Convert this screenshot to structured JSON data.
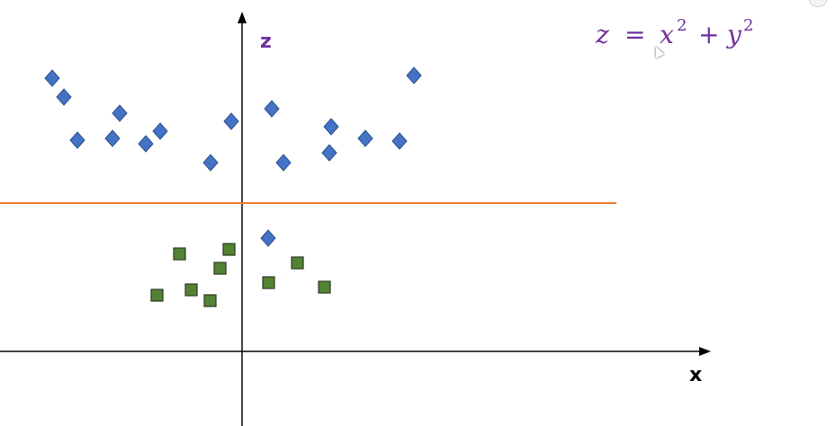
{
  "axes": {
    "x_label": "x",
    "z_label": "z"
  },
  "formula": {
    "lhs": "z",
    "eq": "=",
    "term1_base": "x",
    "term1_exp": "2",
    "plus": "+",
    "term2_base": "y",
    "term2_exp": "2"
  },
  "colors": {
    "axis": "#000000",
    "label": "#7030a0",
    "blue_points": "#4472c4",
    "green_points": "#548235",
    "separator": "#ed7d31"
  },
  "icons": {
    "blue_marker": "diamond",
    "green_marker": "square",
    "cursor": "pointer-cursor-icon"
  }
}
